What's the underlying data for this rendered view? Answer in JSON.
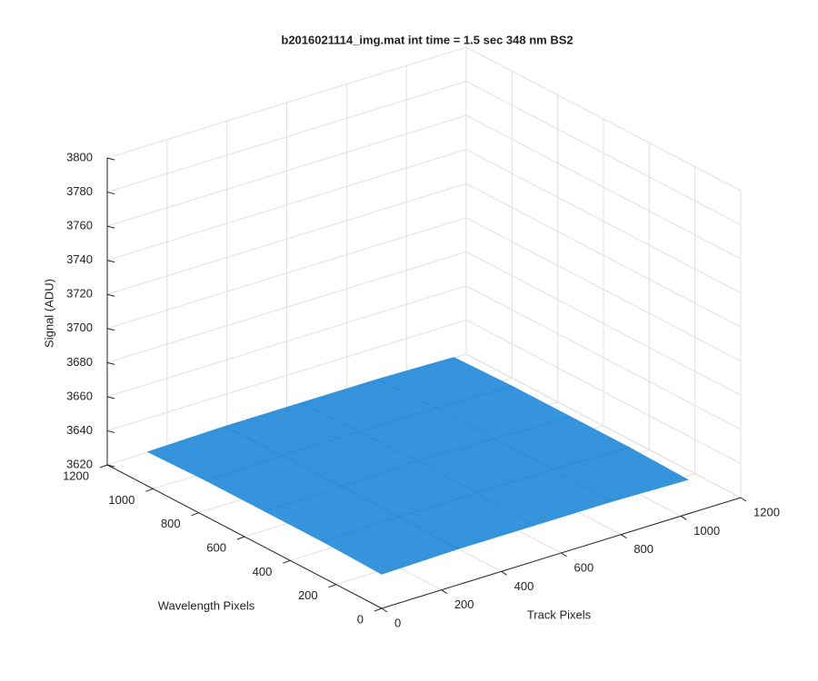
{
  "chart_data": {
    "type": "surface",
    "title": "b2016021114_img.mat int time = 1.5 sec  348 nm BS2",
    "xlabel": "Track Pixels",
    "ylabel": "Wavelength Pixels",
    "zlabel": "Signal (ADU)",
    "x": [
      0,
      256,
      512,
      768,
      1024
    ],
    "y": [
      0,
      256,
      512,
      768,
      1024
    ],
    "z": [
      [
        3640,
        3641,
        3641,
        3641,
        3640
      ],
      [
        3641,
        3642,
        3642,
        3642,
        3641
      ],
      [
        3641,
        3642,
        3643,
        3642,
        3641
      ],
      [
        3641,
        3642,
        3642,
        3642,
        3641
      ],
      [
        3640,
        3641,
        3641,
        3641,
        3640
      ]
    ],
    "color": "#1c86d8",
    "xlim": [
      0,
      1200
    ],
    "xticks": [
      0,
      200,
      400,
      600,
      800,
      1000,
      1200
    ],
    "ylim": [
      0,
      1200
    ],
    "yticks": [
      0,
      200,
      400,
      600,
      800,
      1000,
      1200
    ],
    "zlim": [
      3620,
      3800
    ],
    "zticks": [
      3620,
      3640,
      3660,
      3680,
      3700,
      3720,
      3740,
      3760,
      3780,
      3800
    ],
    "grid": true
  }
}
